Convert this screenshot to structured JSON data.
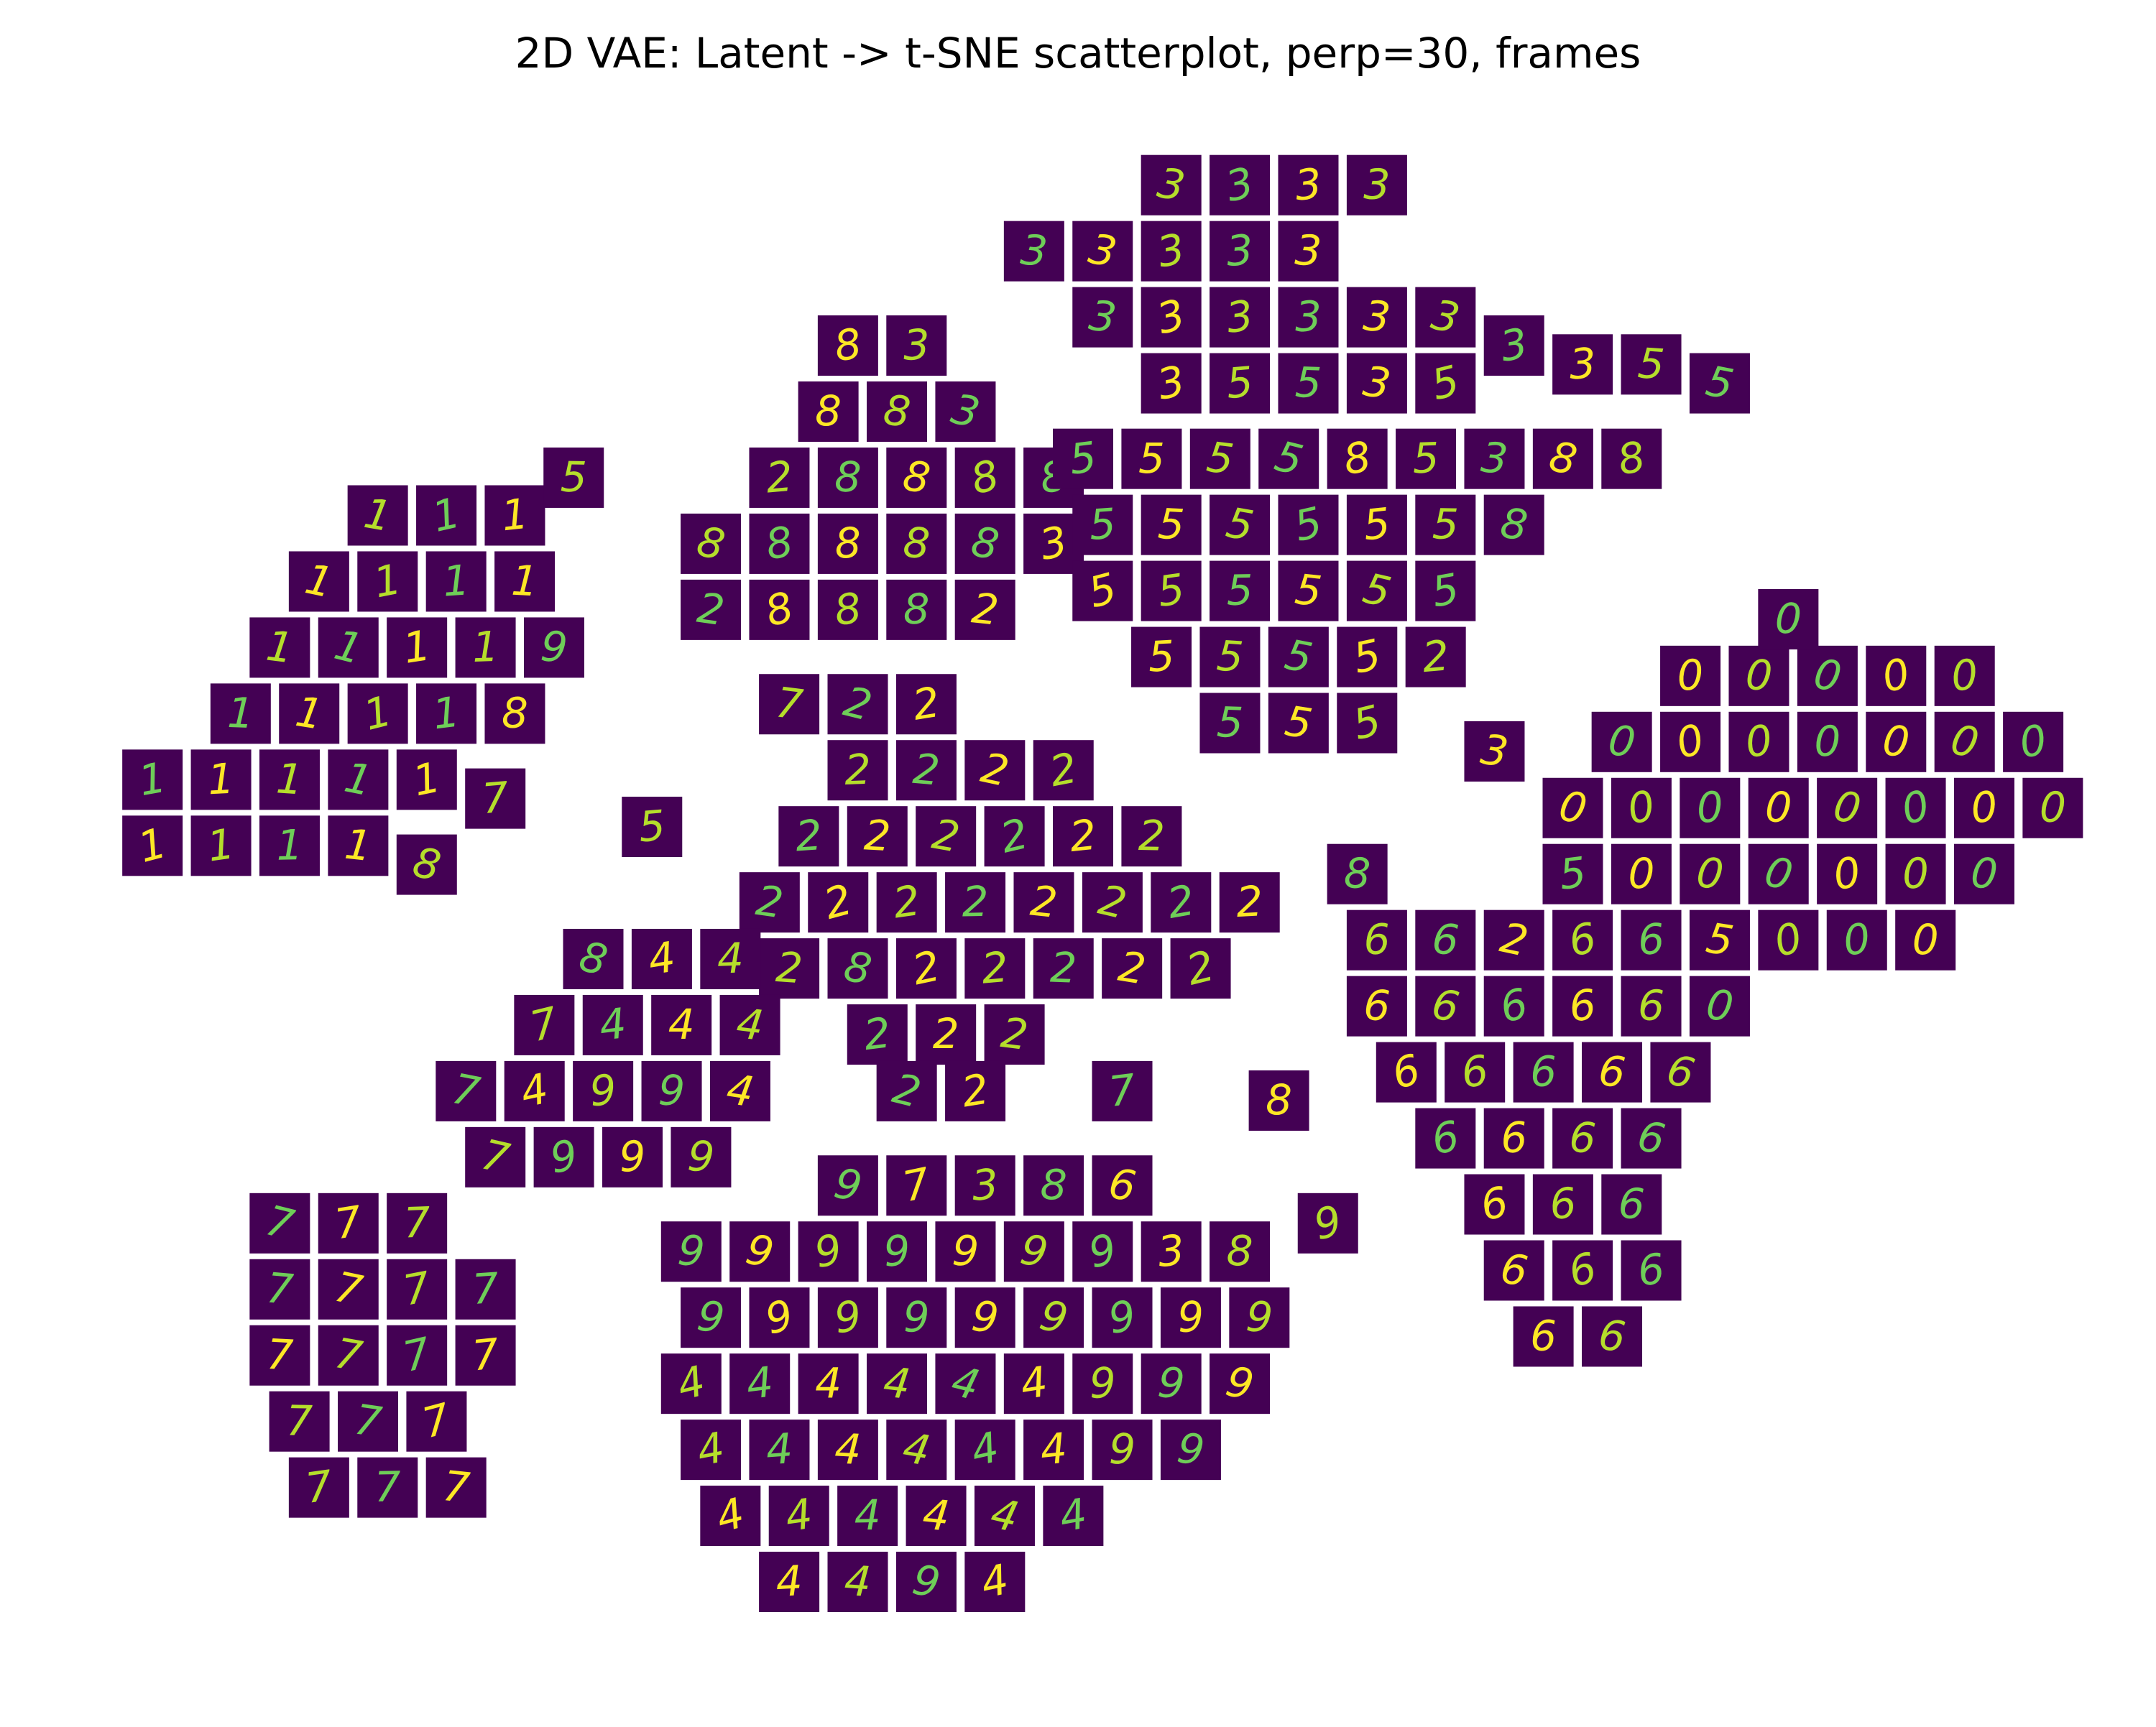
{
  "chart_data": {
    "type": "scatter",
    "title": "2D VAE: Latent -> t-SNE scatterplot, perp=30, frames",
    "xlim": [
      -100,
      100
    ],
    "ylim": [
      -80,
      80
    ],
    "marker": "frame",
    "frame_color": "#440154",
    "digit_colors": [
      "#fde725",
      "#b5de2b",
      "#6ece58"
    ],
    "x": [
      -95,
      -88,
      -81,
      -74,
      -67,
      -95,
      -88,
      -81,
      -74,
      -67,
      -60,
      -86,
      -79,
      -72,
      -65,
      -58,
      -82,
      -75,
      -68,
      -61,
      -54,
      -78,
      -71,
      -64,
      -57,
      -72,
      -65,
      -58,
      -52,
      -38,
      -31,
      -24,
      -17,
      -10,
      -38,
      -31,
      -24,
      -17,
      -10,
      -3,
      -31,
      -24,
      -17,
      -10,
      -3,
      -26,
      -19,
      -12,
      -24,
      -17,
      -5,
      2,
      9,
      16,
      23,
      9,
      16,
      23,
      30,
      2,
      9,
      16,
      23,
      30,
      37,
      44,
      51,
      58,
      65,
      9,
      16,
      23,
      30,
      37,
      0,
      7,
      14,
      21,
      28,
      35,
      42,
      49,
      56,
      2,
      9,
      16,
      23,
      30,
      37,
      44,
      2,
      9,
      16,
      23,
      30,
      37,
      8,
      15,
      22,
      29,
      36,
      15,
      22,
      29,
      50,
      57,
      64,
      71,
      78,
      85,
      92,
      50,
      57,
      64,
      71,
      78,
      85,
      92,
      99,
      55,
      62,
      69,
      76,
      83,
      90,
      97,
      62,
      69,
      76,
      83,
      90,
      72,
      65,
      72,
      79,
      86,
      -30,
      -23,
      -16,
      -23,
      -16,
      -9,
      -2,
      -28,
      -21,
      -14,
      -7,
      0,
      7,
      -32,
      -25,
      -18,
      -11,
      -4,
      3,
      10,
      17,
      -30,
      -23,
      -16,
      -9,
      -2,
      5,
      12,
      -21,
      -14,
      -7,
      -18,
      -11,
      30,
      37,
      44,
      51,
      58,
      30,
      37,
      44,
      51,
      58,
      65,
      33,
      40,
      47,
      54,
      61,
      37,
      44,
      51,
      58,
      42,
      49,
      56,
      44,
      51,
      58,
      47,
      54,
      -82,
      -75,
      -68,
      -82,
      -75,
      -68,
      -61,
      -82,
      -75,
      -68,
      -61,
      -80,
      -73,
      -66,
      -78,
      -71,
      -64,
      -60,
      -53,
      -46,
      -39,
      -63,
      -56,
      -49,
      -42,
      -35,
      -55,
      -48,
      -41,
      -34,
      -50,
      -43,
      -36,
      -40,
      -33,
      -26,
      -19,
      -12,
      -5,
      2,
      9,
      16,
      -38,
      -31,
      -24,
      -17,
      -10,
      -3,
      4,
      11,
      18,
      -24,
      -17,
      -10,
      -3,
      4,
      -40,
      -33,
      -26,
      -19,
      -12,
      -5,
      2,
      9,
      16,
      -38,
      -31,
      -24,
      -17,
      -10,
      -3,
      4,
      11,
      -36,
      -29,
      -22,
      -15,
      -8,
      -1,
      -30,
      -23,
      -16,
      -9,
      -44,
      28,
      42,
      25,
      4,
      20
    ],
    "y": [
      5,
      5,
      5,
      5,
      3,
      12,
      12,
      12,
      12,
      12,
      10,
      19,
      19,
      19,
      19,
      19,
      26,
      26,
      26,
      26,
      26,
      33,
      33,
      33,
      33,
      40,
      40,
      40,
      44,
      30,
      30,
      30,
      30,
      30,
      37,
      37,
      37,
      37,
      37,
      37,
      44,
      44,
      44,
      44,
      44,
      51,
      51,
      51,
      58,
      58,
      68,
      68,
      68,
      68,
      68,
      75,
      75,
      75,
      75,
      61,
      61,
      61,
      61,
      61,
      61,
      58,
      56,
      56,
      54,
      54,
      54,
      54,
      54,
      54,
      46,
      46,
      46,
      46,
      46,
      46,
      46,
      46,
      46,
      39,
      39,
      39,
      39,
      39,
      39,
      39,
      32,
      32,
      32,
      32,
      32,
      32,
      25,
      25,
      25,
      25,
      25,
      18,
      18,
      18,
      2,
      2,
      2,
      2,
      2,
      2,
      2,
      9,
      9,
      9,
      9,
      9,
      9,
      9,
      9,
      16,
      16,
      16,
      16,
      16,
      16,
      16,
      23,
      23,
      23,
      23,
      23,
      29,
      -5,
      -5,
      -5,
      -5,
      20,
      20,
      20,
      13,
      13,
      13,
      13,
      6,
      6,
      6,
      6,
      6,
      6,
      -1,
      -1,
      -1,
      -1,
      -1,
      -1,
      -1,
      -1,
      -8,
      -8,
      -8,
      -8,
      -8,
      -8,
      -8,
      -15,
      -15,
      -15,
      -21,
      -21,
      -5,
      -5,
      -5,
      -5,
      -5,
      -12,
      -12,
      -12,
      -12,
      -12,
      -12,
      -19,
      -19,
      -19,
      -19,
      -19,
      -26,
      -26,
      -26,
      -26,
      -33,
      -33,
      -33,
      -40,
      -40,
      -40,
      -47,
      -47,
      -35,
      -35,
      -35,
      -42,
      -42,
      -42,
      -42,
      -49,
      -49,
      -49,
      -49,
      -56,
      -56,
      -56,
      -63,
      -63,
      -63,
      -28,
      -28,
      -28,
      -28,
      -21,
      -21,
      -21,
      -21,
      -21,
      -14,
      -14,
      -14,
      -14,
      -7,
      -7,
      -7,
      -38,
      -38,
      -38,
      -38,
      -38,
      -38,
      -38,
      -38,
      -38,
      -45,
      -45,
      -45,
      -45,
      -45,
      -45,
      -45,
      -45,
      -45,
      -31,
      -31,
      -31,
      -31,
      -31,
      -52,
      -52,
      -52,
      -52,
      -52,
      -52,
      -52,
      -52,
      -52,
      -59,
      -59,
      -59,
      -59,
      -59,
      -59,
      -59,
      -59,
      -66,
      -66,
      -66,
      -66,
      -66,
      -66,
      -73,
      -73,
      -73,
      -73,
      7,
      2,
      15,
      -35,
      -21,
      -22
    ],
    "labels": [
      "1",
      "1",
      "1",
      "1",
      "8",
      "1",
      "1",
      "1",
      "1",
      "1",
      "7",
      "1",
      "1",
      "1",
      "1",
      "8",
      "1",
      "1",
      "1",
      "1",
      "9",
      "1",
      "1",
      "1",
      "1",
      "1",
      "1",
      "1",
      "5",
      "2",
      "8",
      "8",
      "8",
      "2",
      "8",
      "8",
      "8",
      "8",
      "8",
      "3",
      "2",
      "8",
      "8",
      "8",
      "8",
      "8",
      "8",
      "3",
      "8",
      "3",
      "3",
      "3",
      "3",
      "3",
      "3",
      "3",
      "3",
      "3",
      "3",
      "3",
      "3",
      "3",
      "3",
      "3",
      "3",
      "3",
      "3",
      "5",
      "5",
      "3",
      "5",
      "5",
      "3",
      "5",
      "5",
      "5",
      "5",
      "5",
      "8",
      "5",
      "3",
      "8",
      "8",
      "5",
      "5",
      "5",
      "5",
      "5",
      "5",
      "8",
      "5",
      "5",
      "5",
      "5",
      "5",
      "5",
      "5",
      "5",
      "5",
      "5",
      "2",
      "5",
      "5",
      "5",
      "5",
      "0",
      "0",
      "0",
      "0",
      "0",
      "0",
      "0",
      "0",
      "0",
      "0",
      "0",
      "0",
      "0",
      "0",
      "0",
      "0",
      "0",
      "0",
      "0",
      "0",
      "0",
      "0",
      "0",
      "0",
      "0",
      "0",
      "0",
      "5",
      "0",
      "0",
      "0",
      "7",
      "2",
      "2",
      "2",
      "2",
      "2",
      "2",
      "2",
      "2",
      "2",
      "2",
      "2",
      "2",
      "2",
      "2",
      "2",
      "2",
      "2",
      "2",
      "2",
      "2",
      "2",
      "8",
      "2",
      "2",
      "2",
      "2",
      "2",
      "2",
      "2",
      "2",
      "2",
      "2",
      "6",
      "6",
      "2",
      "6",
      "6",
      "6",
      "6",
      "6",
      "6",
      "6",
      "0",
      "6",
      "6",
      "6",
      "6",
      "6",
      "6",
      "6",
      "6",
      "6",
      "6",
      "6",
      "6",
      "6",
      "6",
      "6",
      "6",
      "6",
      "7",
      "7",
      "7",
      "7",
      "7",
      "7",
      "7",
      "7",
      "7",
      "7",
      "7",
      "7",
      "7",
      "7",
      "7",
      "7",
      "7",
      "7",
      "9",
      "9",
      "9",
      "7",
      "4",
      "9",
      "9",
      "4",
      "7",
      "4",
      "4",
      "4",
      "8",
      "4",
      "4",
      "9",
      "9",
      "9",
      "9",
      "9",
      "9",
      "9",
      "3",
      "8",
      "9",
      "9",
      "9",
      "9",
      "9",
      "9",
      "9",
      "9",
      "9",
      "9",
      "7",
      "3",
      "8",
      "6",
      "4",
      "4",
      "4",
      "4",
      "4",
      "4",
      "9",
      "9",
      "9",
      "4",
      "4",
      "4",
      "4",
      "4",
      "4",
      "9",
      "9",
      "4",
      "4",
      "4",
      "4",
      "4",
      "4",
      "4",
      "4",
      "9",
      "4",
      "5",
      "8",
      "3",
      "9",
      "7",
      "8"
    ]
  }
}
